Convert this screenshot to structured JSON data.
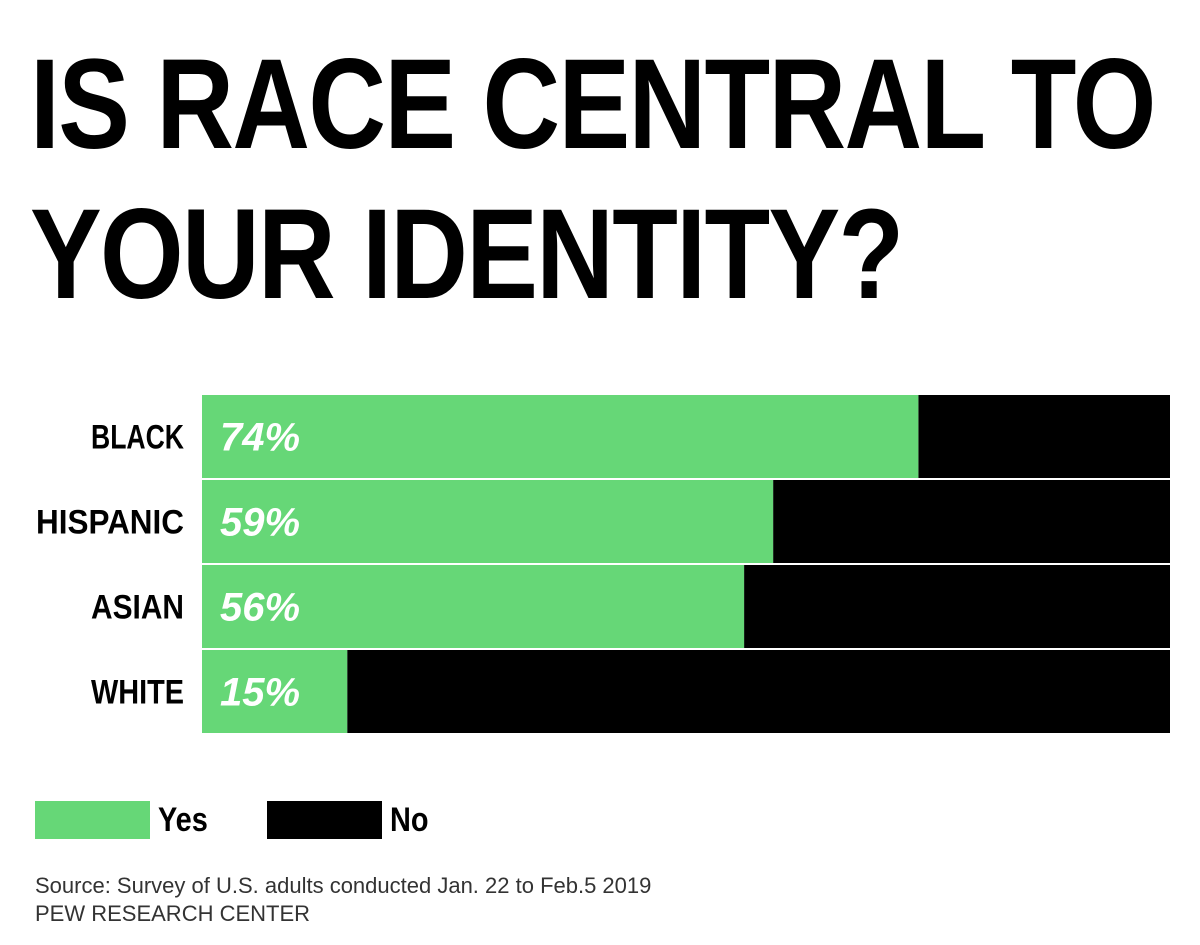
{
  "title_lines": [
    "IS RACE CENTRAL TO",
    "YOUR IDENTITY?"
  ],
  "colors": {
    "yes": "#66d777",
    "no": "#000000",
    "divider": "#ffffff"
  },
  "chart_data": {
    "type": "bar",
    "orientation": "horizontal",
    "stacked": true,
    "categories": [
      "BLACK",
      "HISPANIC",
      "ASIAN",
      "WHITE"
    ],
    "series": [
      {
        "name": "Yes",
        "values": [
          74,
          59,
          56,
          15
        ]
      },
      {
        "name": "No",
        "values": [
          26,
          41,
          44,
          85
        ]
      }
    ],
    "value_labels": [
      "74%",
      "59%",
      "56%",
      "15%"
    ],
    "xlim": [
      0,
      100
    ],
    "grid": false,
    "legend_position": "bottom-left"
  },
  "legend": [
    {
      "label": "Yes",
      "color": "#66d777"
    },
    {
      "label": "No",
      "color": "#000000"
    }
  ],
  "footer": {
    "source": "Source: Survey of U.S. adults conducted Jan. 22 to Feb.5 2019",
    "org": "PEW RESEARCH CENTER"
  }
}
